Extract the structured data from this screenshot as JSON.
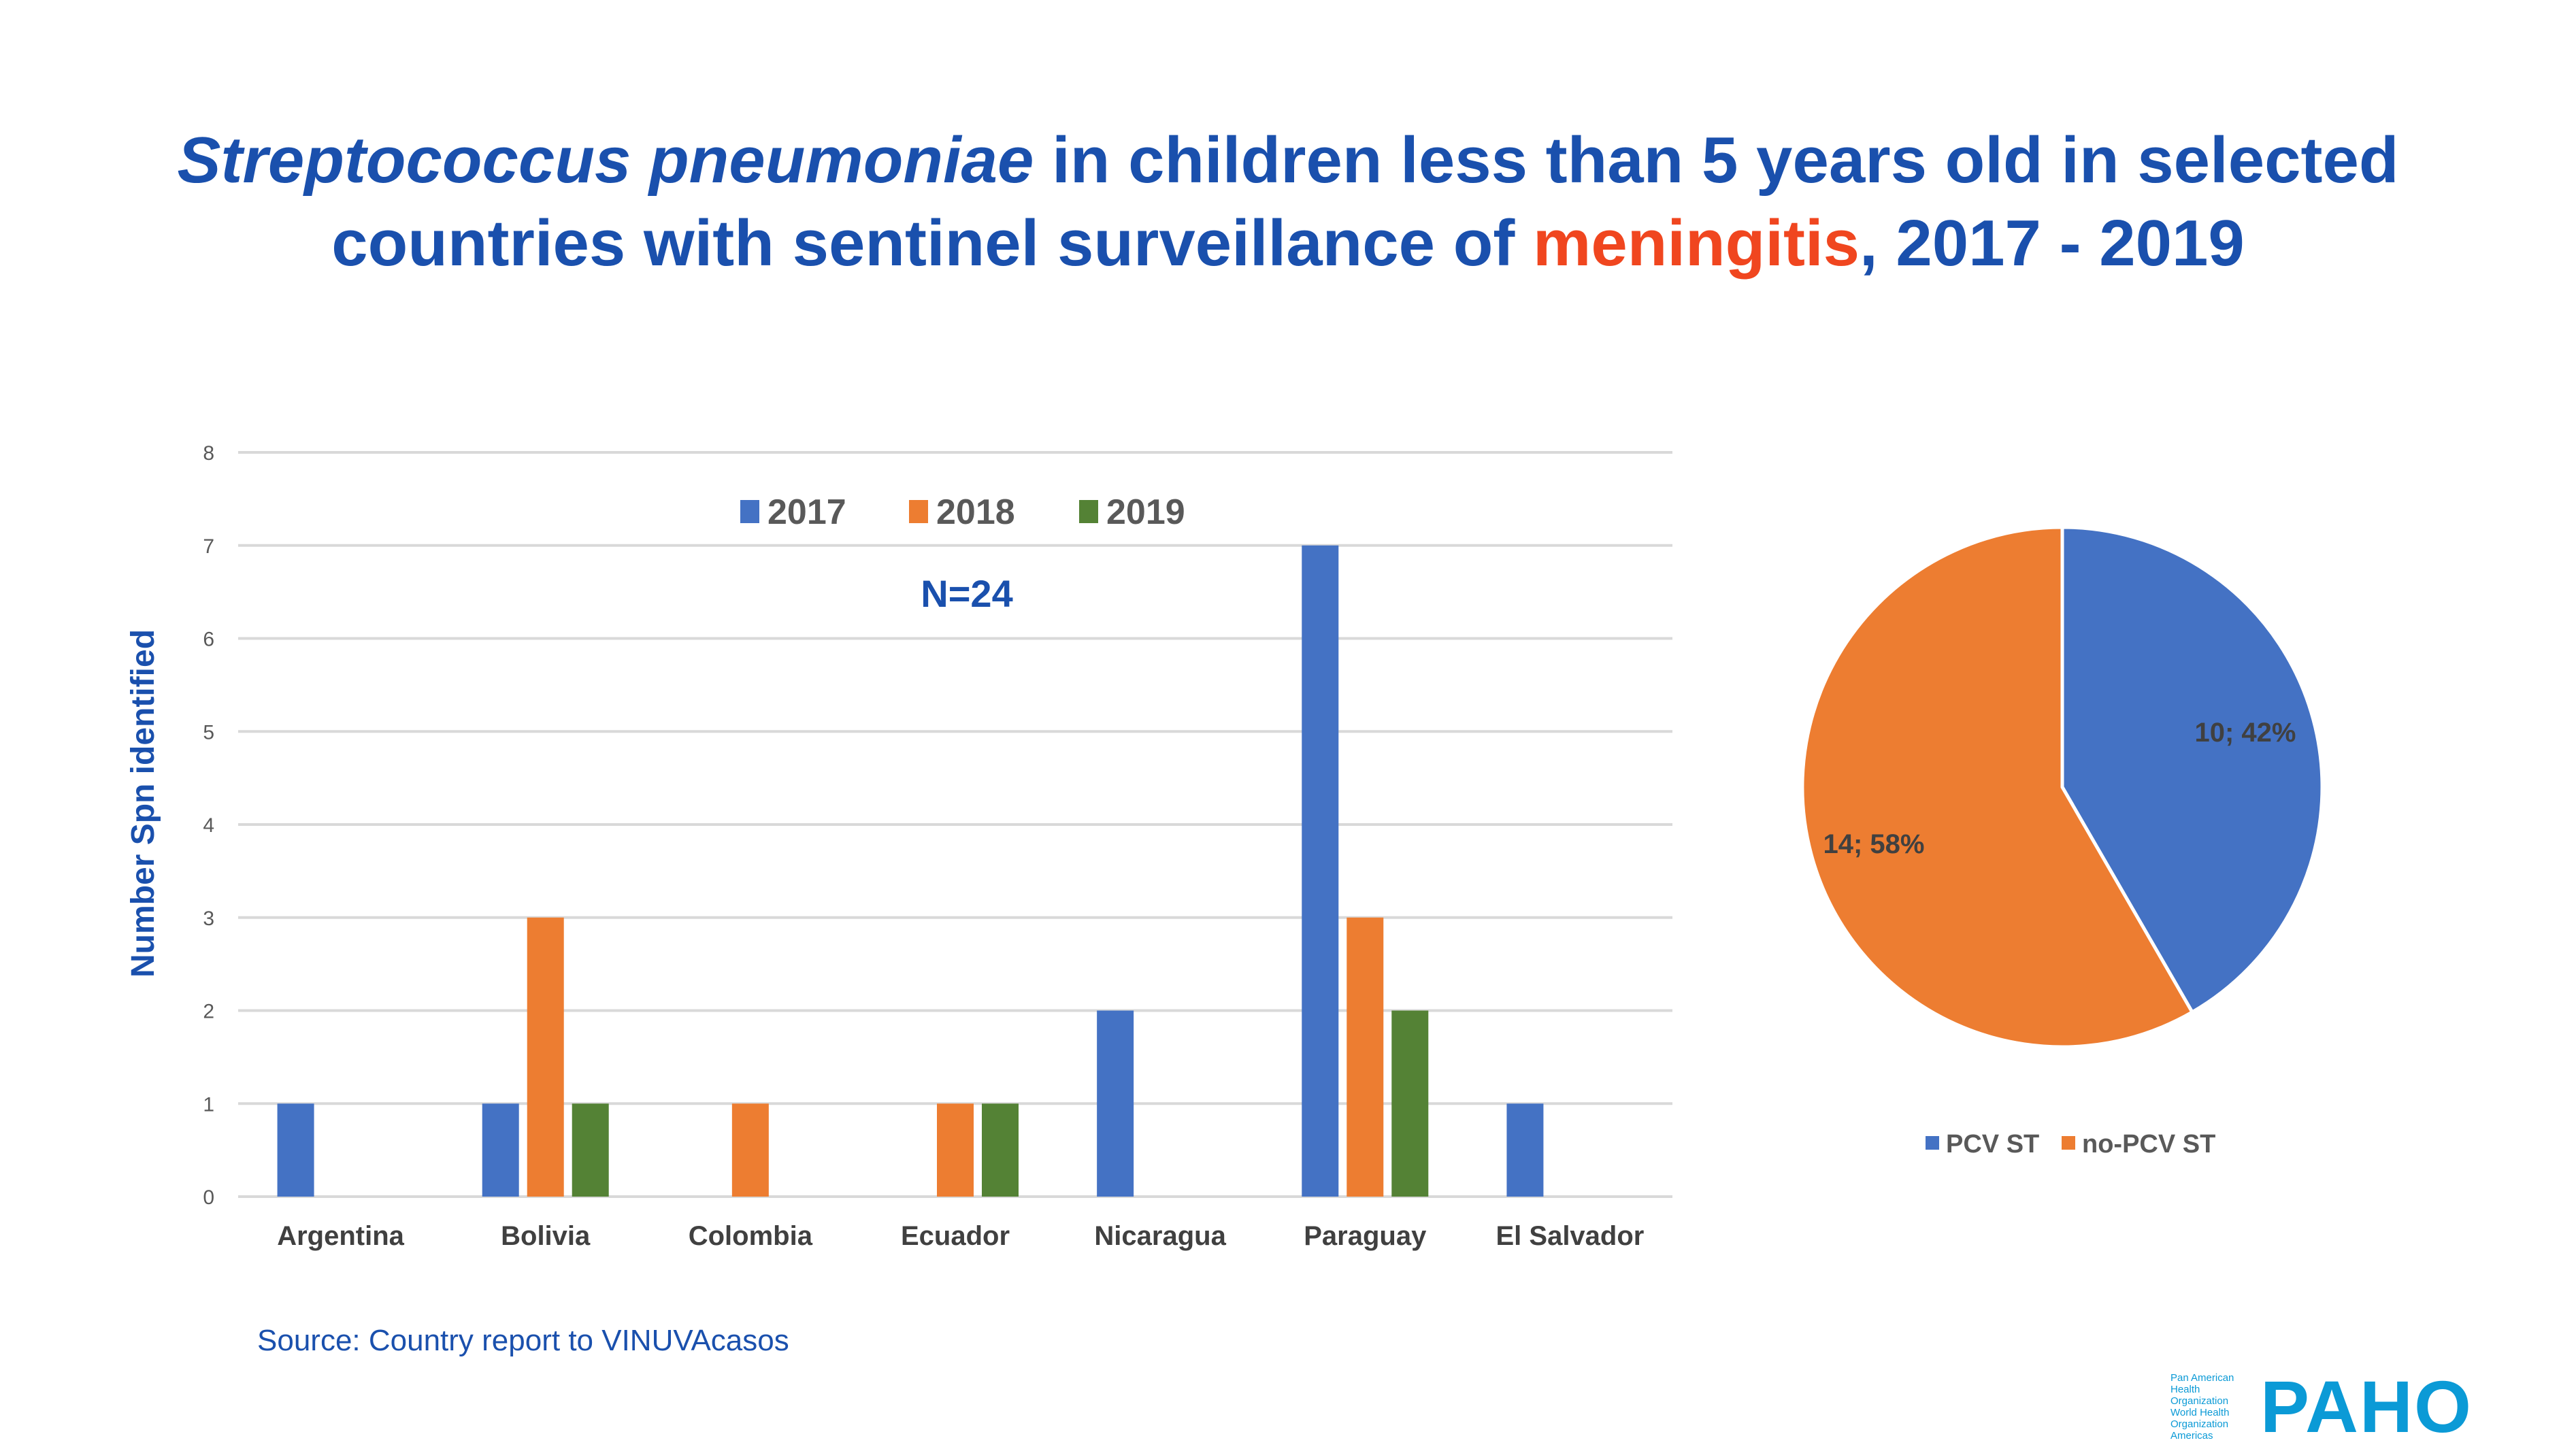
{
  "title": {
    "italic": "Streptococcus pneumoniae",
    "part1": " in children less than 5 years old in selected",
    "part2": "countries with sentinel surveillance of ",
    "highlight": "meningitis",
    "part3": ", 2017 - 2019"
  },
  "colors": {
    "title": "#1a50ad",
    "highlight": "#f0461f",
    "s2017": "#4472c4",
    "s2018": "#ed7d31",
    "s2019": "#548235",
    "logo": "#0b9ad6"
  },
  "chart_data": [
    {
      "type": "bar",
      "ylabel": "Number Spn identified",
      "xlabel": "",
      "ylim": [
        0,
        8
      ],
      "yticks": [
        "0",
        "1",
        "2",
        "3",
        "4",
        "5",
        "6",
        "7",
        "8"
      ],
      "grid": true,
      "legend_placement": "top-center",
      "annotation": "N=24",
      "categories": [
        "Argentina",
        "Bolivia",
        "Colombia",
        "Ecuador",
        "Nicaragua",
        "Paraguay",
        "El Salvador"
      ],
      "series": [
        {
          "name": "2017",
          "color": "#4472c4",
          "values": [
            1,
            1,
            0,
            0,
            2,
            7,
            1
          ]
        },
        {
          "name": "2018",
          "color": "#ed7d31",
          "values": [
            0,
            3,
            1,
            1,
            0,
            3,
            0
          ]
        },
        {
          "name": "2019",
          "color": "#548235",
          "values": [
            0,
            1,
            0,
            1,
            0,
            2,
            0
          ]
        }
      ]
    },
    {
      "type": "pie",
      "legend_placement": "bottom",
      "slices": [
        {
          "name": "PCV ST",
          "value": 10,
          "percent": 42,
          "label": "10; 42%",
          "color": "#4472c4"
        },
        {
          "name": "no-PCV ST",
          "value": 14,
          "percent": 58,
          "label": "14; 58%",
          "color": "#ed7d31"
        }
      ]
    }
  ],
  "source": "Source: Country report to VINUVAcasos",
  "logo": {
    "org1": "Pan American Health Organization",
    "org2": "World Health Organization",
    "region": "Americas",
    "acronym": "PAHO"
  }
}
